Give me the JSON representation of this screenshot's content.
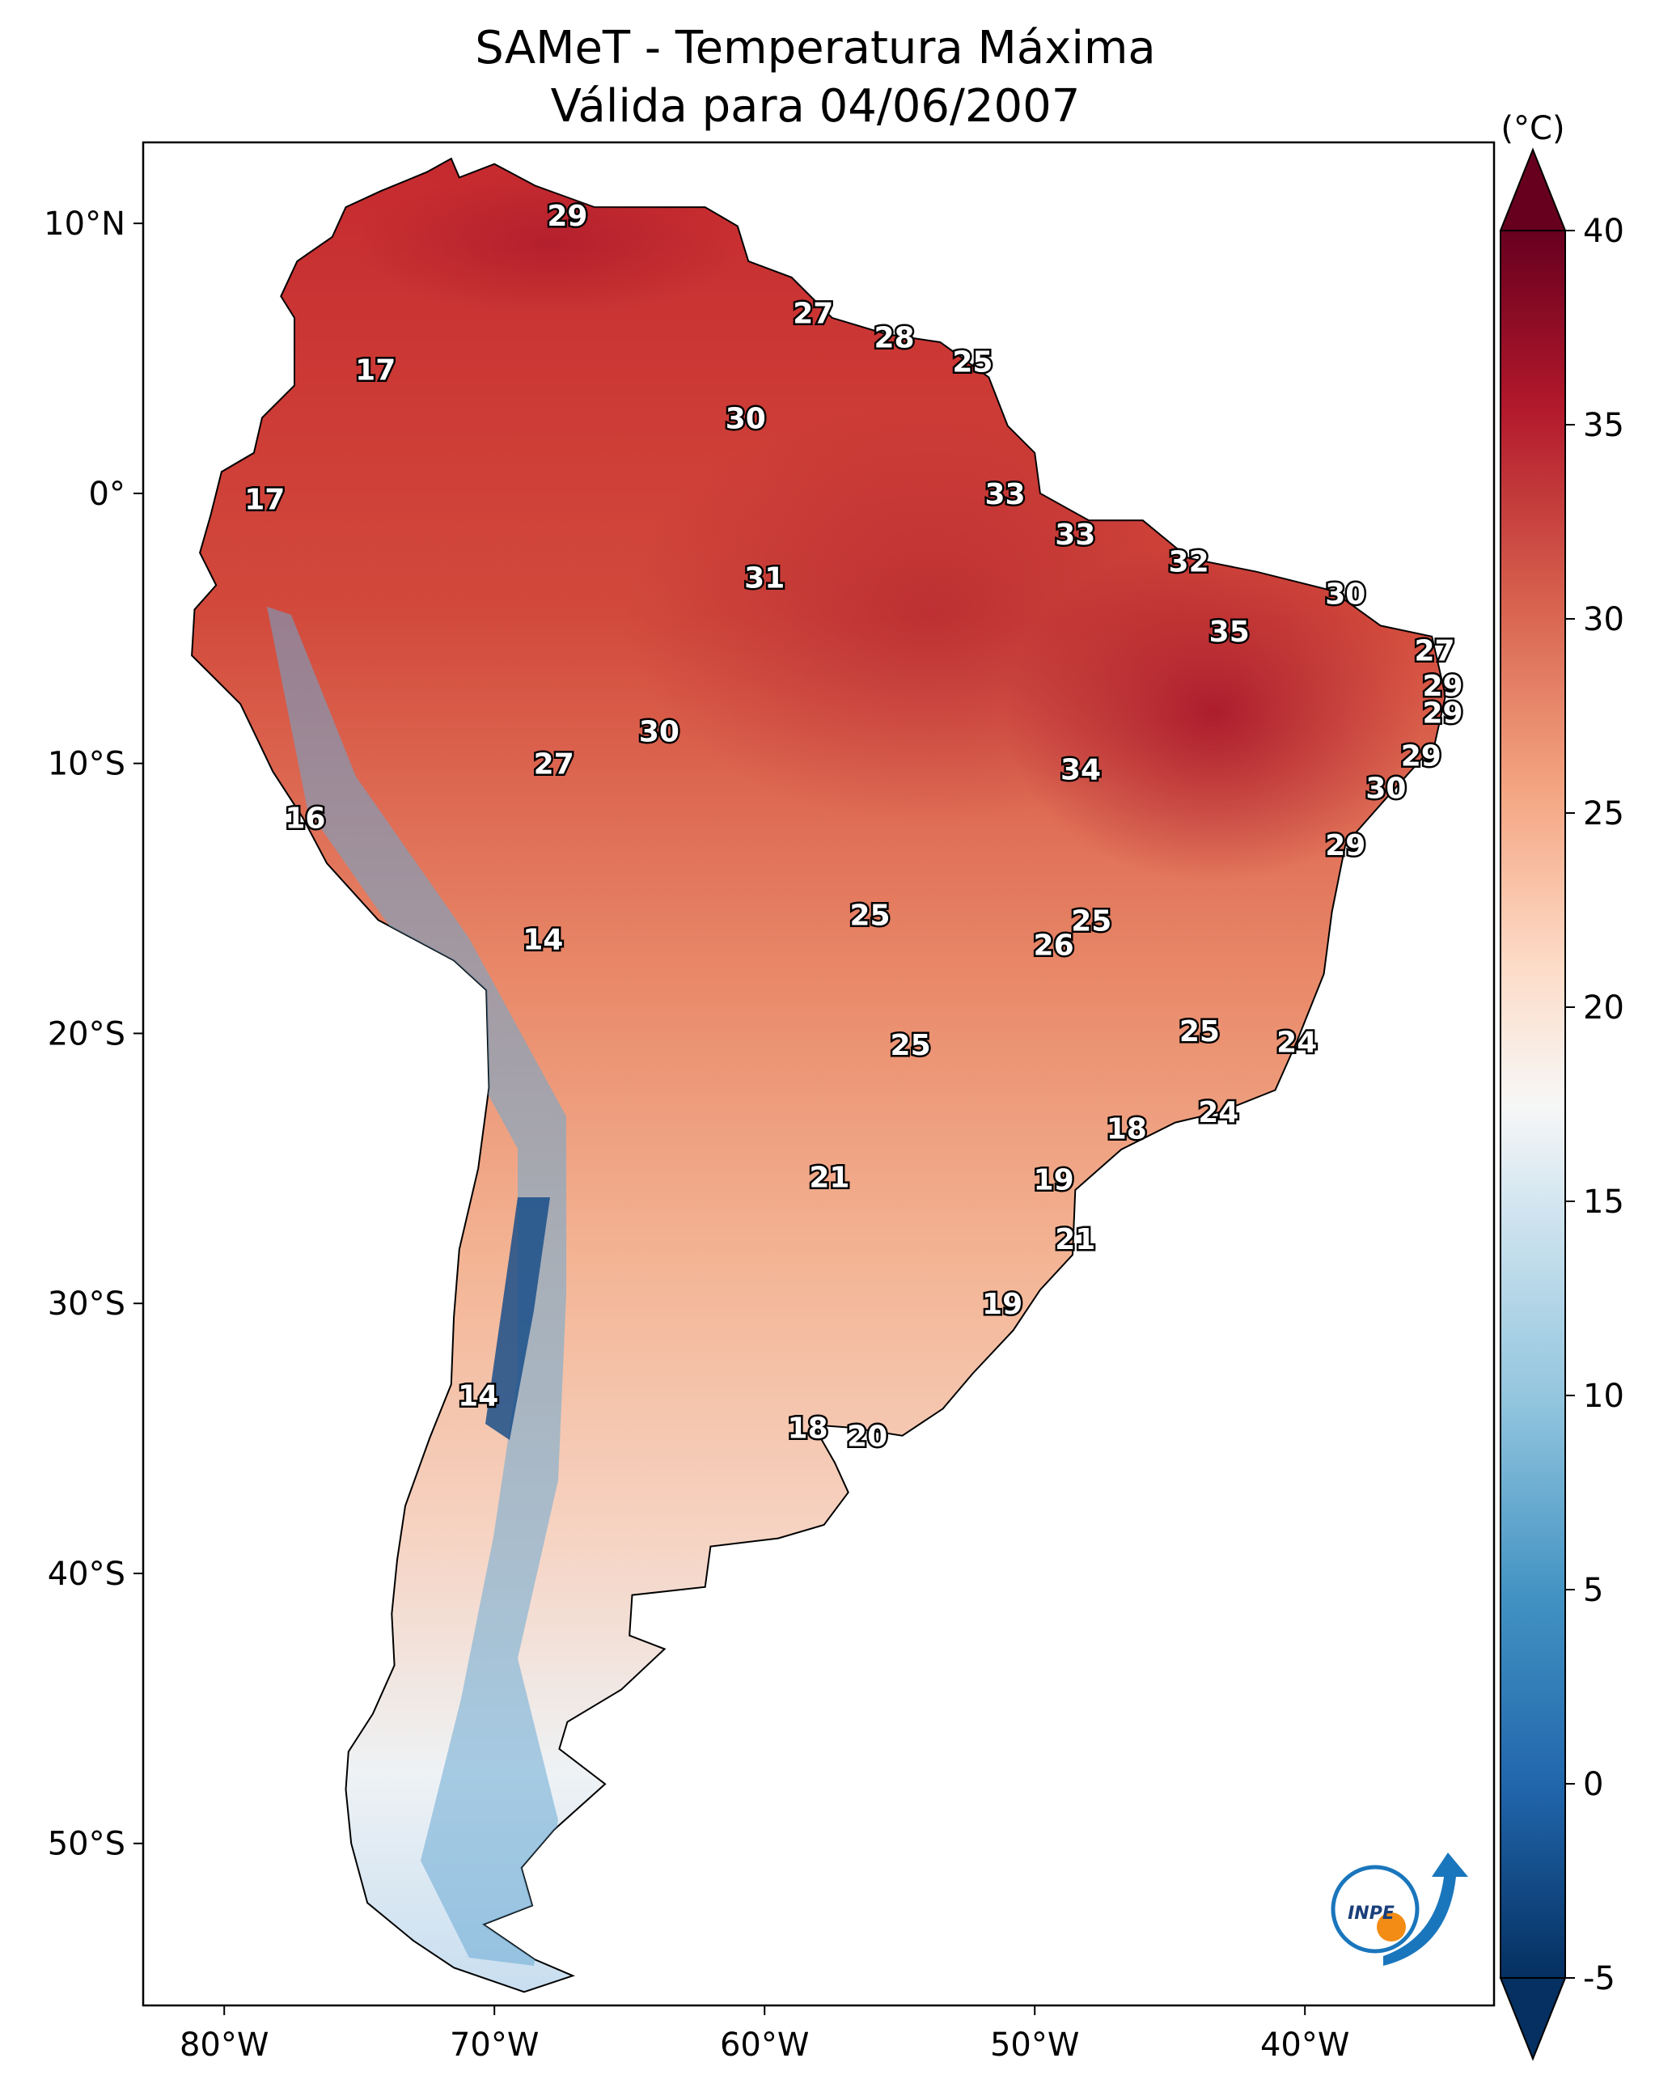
{
  "title": {
    "line1": "SAMeT - Temperatura Máxima",
    "line2": "Válida para 04/06/2007"
  },
  "map_axes": {
    "lon_range": [
      -83,
      -33
    ],
    "lat_range": [
      -56,
      13
    ],
    "lon_ticks": [
      {
        "value": -80,
        "label": "80°W"
      },
      {
        "value": -70,
        "label": "70°W"
      },
      {
        "value": -60,
        "label": "60°W"
      },
      {
        "value": -50,
        "label": "50°W"
      },
      {
        "value": -40,
        "label": "40°W"
      }
    ],
    "lat_ticks": [
      {
        "value": 10,
        "label": "10°N"
      },
      {
        "value": 0,
        "label": "0°"
      },
      {
        "value": -10,
        "label": "10°S"
      },
      {
        "value": -20,
        "label": "20°S"
      },
      {
        "value": -30,
        "label": "30°S"
      },
      {
        "value": -40,
        "label": "40°S"
      },
      {
        "value": -50,
        "label": "50°S"
      }
    ]
  },
  "colorbar": {
    "unit_label": "(°C)",
    "range": [
      -5,
      40
    ],
    "extend": "both",
    "ticks": [
      {
        "value": 40,
        "label": "40"
      },
      {
        "value": 35,
        "label": "35"
      },
      {
        "value": 30,
        "label": "30"
      },
      {
        "value": 25,
        "label": "25"
      },
      {
        "value": 20,
        "label": "20"
      },
      {
        "value": 15,
        "label": "15"
      },
      {
        "value": 10,
        "label": "10"
      },
      {
        "value": 5,
        "label": "5"
      },
      {
        "value": 0,
        "label": "0"
      },
      {
        "value": -5,
        "label": "-5"
      }
    ],
    "colors": [
      "#053061",
      "#2166ac",
      "#4393c3",
      "#92c5de",
      "#d1e5f0",
      "#f7f7f7",
      "#fddbc7",
      "#f4a582",
      "#d6604d",
      "#b2182b",
      "#67001f"
    ]
  },
  "stations": [
    {
      "label": "29",
      "lon": -67.3,
      "lat": 10.3
    },
    {
      "label": "17",
      "lon": -74.4,
      "lat": 4.6
    },
    {
      "label": "27",
      "lon": -58.2,
      "lat": 6.7
    },
    {
      "label": "28",
      "lon": -55.2,
      "lat": 5.8
    },
    {
      "label": "25",
      "lon": -52.3,
      "lat": 4.9
    },
    {
      "label": "30",
      "lon": -60.7,
      "lat": 2.8
    },
    {
      "label": "17",
      "lon": -78.5,
      "lat": -0.2
    },
    {
      "label": "33",
      "lon": -51.1,
      "lat": 0.0
    },
    {
      "label": "33",
      "lon": -48.5,
      "lat": -1.5
    },
    {
      "label": "32",
      "lon": -44.3,
      "lat": -2.5
    },
    {
      "label": "31",
      "lon": -60.0,
      "lat": -3.1
    },
    {
      "label": "30",
      "lon": -38.5,
      "lat": -3.7
    },
    {
      "label": "35",
      "lon": -42.8,
      "lat": -5.1
    },
    {
      "label": "27",
      "lon": -35.2,
      "lat": -5.8
    },
    {
      "label": "29",
      "lon": -34.9,
      "lat": -7.1
    },
    {
      "label": "29",
      "lon": -34.9,
      "lat": -8.1
    },
    {
      "label": "30",
      "lon": -63.9,
      "lat": -8.8
    },
    {
      "label": "27",
      "lon": -67.8,
      "lat": -10.0
    },
    {
      "label": "34",
      "lon": -48.3,
      "lat": -10.2
    },
    {
      "label": "29",
      "lon": -35.7,
      "lat": -9.7
    },
    {
      "label": "30",
      "lon": -37.0,
      "lat": -10.9
    },
    {
      "label": "16",
      "lon": -77.0,
      "lat": -12.0
    },
    {
      "label": "29",
      "lon": -38.5,
      "lat": -13.0
    },
    {
      "label": "25",
      "lon": -56.1,
      "lat": -15.6
    },
    {
      "label": "25",
      "lon": -47.9,
      "lat": -15.8
    },
    {
      "label": "26",
      "lon": -49.3,
      "lat": -16.7
    },
    {
      "label": "14",
      "lon": -68.2,
      "lat": -16.5
    },
    {
      "label": "25",
      "lon": -54.6,
      "lat": -20.4
    },
    {
      "label": "25",
      "lon": -43.9,
      "lat": -19.9
    },
    {
      "label": "24",
      "lon": -40.3,
      "lat": -20.3
    },
    {
      "label": "24",
      "lon": -43.2,
      "lat": -22.9
    },
    {
      "label": "18",
      "lon": -46.6,
      "lat": -23.5
    },
    {
      "label": "21",
      "lon": -57.6,
      "lat": -25.3
    },
    {
      "label": "19",
      "lon": -49.3,
      "lat": -25.4
    },
    {
      "label": "21",
      "lon": -48.5,
      "lat": -27.6
    },
    {
      "label": "19",
      "lon": -51.2,
      "lat": -30.0
    },
    {
      "label": "14",
      "lon": -70.6,
      "lat": -33.4
    },
    {
      "label": "18",
      "lon": -58.4,
      "lat": -34.6
    },
    {
      "label": "20",
      "lon": -56.2,
      "lat": -34.9
    }
  ],
  "logo": {
    "text": "INPE"
  }
}
